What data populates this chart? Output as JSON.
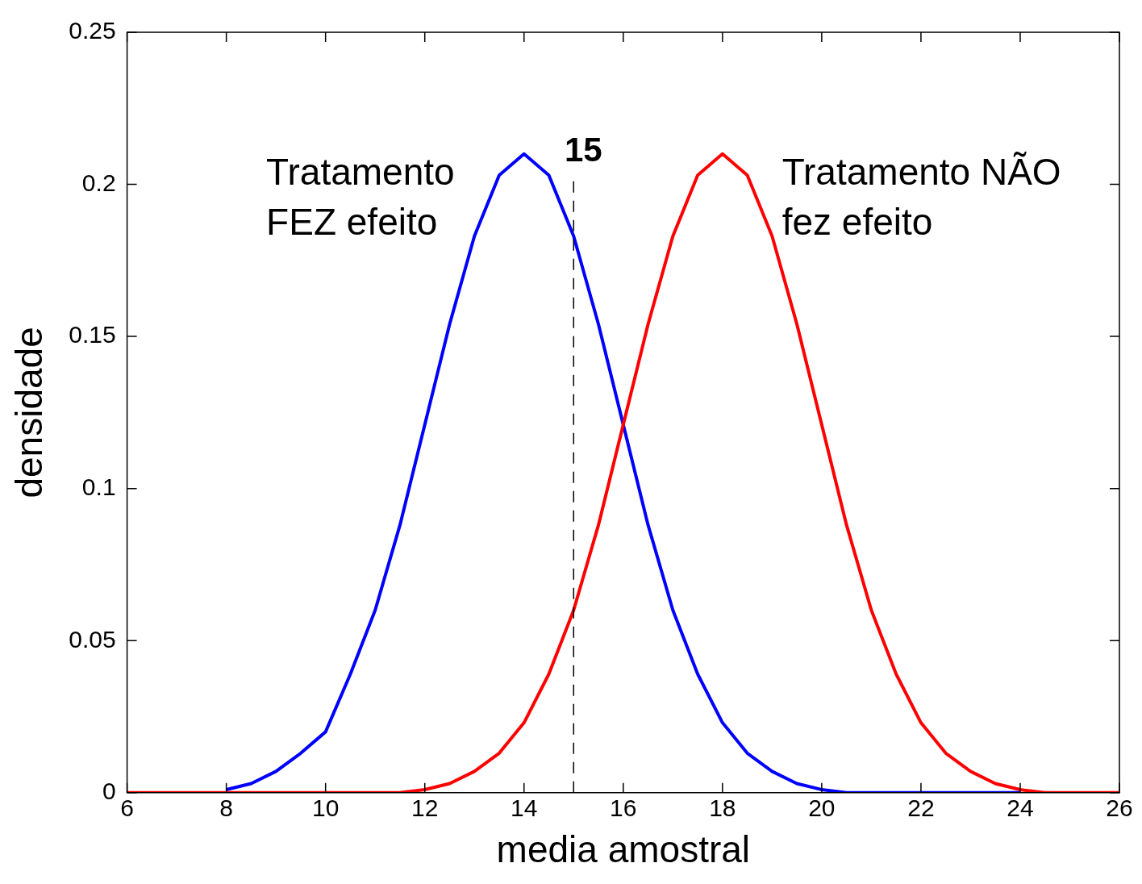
{
  "chart_data": {
    "type": "line",
    "xlabel": "media amostral",
    "ylabel": "densidade",
    "x": [
      6,
      6.5,
      7,
      7.5,
      8,
      8.5,
      9,
      9.5,
      10,
      10.5,
      11,
      11.5,
      12,
      12.5,
      13,
      13.5,
      14,
      14.5,
      15,
      15.5,
      16,
      16.5,
      17,
      17.5,
      18,
      18.5,
      19,
      19.5,
      20,
      20.5,
      21,
      21.5,
      22,
      22.5,
      23,
      23.5,
      24,
      24.5,
      25,
      25.5,
      26
    ],
    "series": [
      {
        "color": "#0000ff",
        "values": [
          null,
          null,
          null,
          null,
          0.001,
          0.003,
          0.007,
          0.013,
          0.02,
          0.039,
          0.06,
          0.088,
          0.121,
          0.154,
          0.183,
          0.203,
          0.21,
          0.203,
          0.183,
          0.154,
          0.121,
          0.088,
          0.06,
          0.039,
          0.023,
          0.013,
          0.007,
          0.003,
          0.001,
          0,
          0,
          0,
          0,
          0,
          0,
          0,
          0,
          null,
          null,
          null,
          null
        ]
      },
      {
        "color": "#ff0000",
        "values": [
          0,
          0,
          0,
          0,
          0,
          0,
          0,
          0,
          0,
          0,
          0,
          0,
          0.001,
          0.003,
          0.007,
          0.013,
          0.023,
          0.039,
          0.06,
          0.088,
          0.121,
          0.154,
          0.183,
          0.203,
          0.21,
          0.203,
          0.183,
          0.154,
          0.121,
          0.088,
          0.06,
          0.039,
          0.023,
          0.013,
          0.007,
          0.003,
          0.001,
          0,
          0,
          0,
          0
        ]
      }
    ],
    "annotations": [
      "Tratamento FEZ efeito",
      "Tratamento NÃO fez efeito"
    ],
    "ref_lines": [
      {
        "axis": "x",
        "value": 15,
        "label": "15",
        "color": "#000000",
        "line_style": "dashed"
      }
    ],
    "xlim": [
      6,
      26
    ],
    "xticks": [
      6,
      8,
      10,
      12,
      14,
      16,
      18,
      20,
      22,
      24,
      26
    ],
    "ylim": [
      0,
      0.25
    ],
    "yticks": [
      0,
      0.05,
      0.1,
      0.15,
      0.2,
      0.25
    ],
    "grid": false,
    "legend": false,
    "marker": "none",
    "line_style": "solid"
  }
}
